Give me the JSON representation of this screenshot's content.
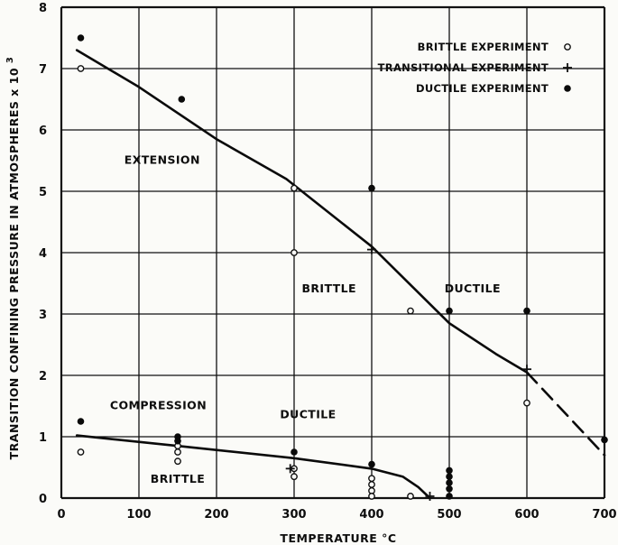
{
  "chart_data": {
    "type": "scatter",
    "xlabel": "TEMPERATURE °C",
    "ylabel": "TRANSITION CONFINING PRESSURE IN ATMOSPHERES x 10",
    "ylabel_exponent": "3",
    "xlim": [
      0,
      700
    ],
    "ylim": [
      0,
      8
    ],
    "x_ticks": [
      "0",
      "100",
      "200",
      "300",
      "400",
      "500",
      "600",
      "700"
    ],
    "y_ticks": [
      "0",
      "1",
      "2",
      "3",
      "4",
      "5",
      "6",
      "7",
      "8"
    ],
    "grid": true,
    "legend_position": "top-right",
    "legend": [
      {
        "label": "BRITTLE EXPERIMENT",
        "marker": "open-circle"
      },
      {
        "label": "TRANSITIONAL EXPERIMENT",
        "marker": "plus"
      },
      {
        "label": "DUCTILE EXPERIMENT",
        "marker": "filled-circle"
      }
    ],
    "annotations": [
      {
        "text": "EXTENSION",
        "x": 130,
        "y": 5.45
      },
      {
        "text": "BRITTLE",
        "x": 345,
        "y": 3.35
      },
      {
        "text": "DUCTILE",
        "x": 530,
        "y": 3.35
      },
      {
        "text": "COMPRESSION",
        "x": 125,
        "y": 1.45
      },
      {
        "text": "DUCTILE",
        "x": 318,
        "y": 1.3
      },
      {
        "text": "BRITTLE",
        "x": 150,
        "y": 0.25
      }
    ],
    "series": [
      {
        "marker": "open-circle",
        "points": [
          [
            25,
            7.0
          ],
          [
            300,
            5.05
          ],
          [
            300,
            4.0
          ],
          [
            450,
            3.05
          ],
          [
            600,
            1.55
          ],
          [
            25,
            0.75
          ],
          [
            150,
            0.85
          ],
          [
            150,
            0.75
          ],
          [
            150,
            0.6
          ],
          [
            300,
            0.48
          ],
          [
            300,
            0.35
          ],
          [
            400,
            0.32
          ],
          [
            400,
            0.22
          ],
          [
            400,
            0.12
          ],
          [
            400,
            0.03
          ],
          [
            450,
            0.03
          ]
        ]
      },
      {
        "marker": "plus",
        "points": [
          [
            600,
            2.1
          ],
          [
            295,
            0.48
          ],
          [
            475,
            0.03
          ],
          [
            400,
            4.05
          ]
        ]
      },
      {
        "marker": "filled-circle",
        "points": [
          [
            25,
            7.5
          ],
          [
            155,
            6.5
          ],
          [
            400,
            5.05
          ],
          [
            500,
            3.05
          ],
          [
            600,
            3.05
          ],
          [
            700,
            0.95
          ],
          [
            25,
            1.25
          ],
          [
            150,
            1.0
          ],
          [
            150,
            0.93
          ],
          [
            300,
            0.75
          ],
          [
            400,
            0.55
          ],
          [
            500,
            0.45
          ],
          [
            500,
            0.35
          ],
          [
            500,
            0.25
          ],
          [
            500,
            0.15
          ],
          [
            500,
            0.03
          ]
        ]
      }
    ],
    "curves": [
      {
        "name": "extension-boundary",
        "style": "solid",
        "points": [
          [
            20,
            7.3
          ],
          [
            100,
            6.7
          ],
          [
            200,
            5.85
          ],
          [
            290,
            5.2
          ],
          [
            400,
            4.1
          ],
          [
            500,
            2.85
          ],
          [
            560,
            2.35
          ],
          [
            600,
            2.05
          ]
        ]
      },
      {
        "name": "extension-boundary-extrapolated",
        "style": "dashed",
        "points": [
          [
            600,
            2.05
          ],
          [
            700,
            0.7
          ]
        ]
      },
      {
        "name": "compression-boundary",
        "style": "solid",
        "points": [
          [
            20,
            1.02
          ],
          [
            150,
            0.85
          ],
          [
            300,
            0.65
          ],
          [
            400,
            0.48
          ],
          [
            440,
            0.35
          ],
          [
            460,
            0.18
          ],
          [
            475,
            0.0
          ]
        ]
      }
    ]
  }
}
